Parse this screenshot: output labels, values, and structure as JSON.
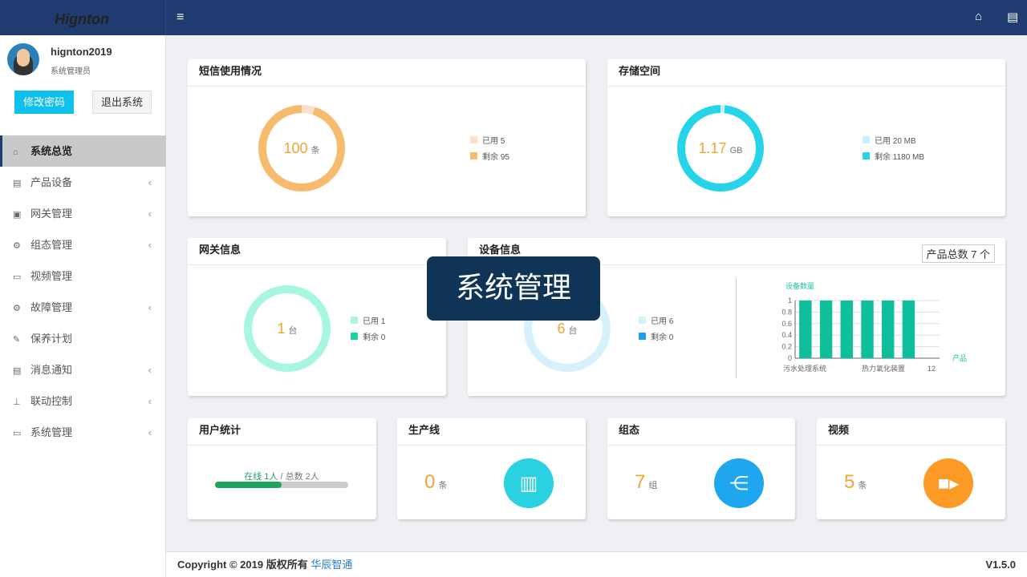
{
  "brand": {
    "logo": "Hignton"
  },
  "user": {
    "name": "hignton2019",
    "role": "系统管理员",
    "change_pwd": "修改密码",
    "logout": "退出系统"
  },
  "nav": [
    {
      "label": "系统总览",
      "icon": "home-icon",
      "active": true
    },
    {
      "label": "产品设备",
      "icon": "book-icon"
    },
    {
      "label": "网关管理",
      "icon": "gateway-icon"
    },
    {
      "label": "组态管理",
      "icon": "cogs-icon"
    },
    {
      "label": "视频管理",
      "icon": "monitor-icon"
    },
    {
      "label": "故障管理",
      "icon": "cogs-icon"
    },
    {
      "label": "保养计划",
      "icon": "wrench-icon"
    },
    {
      "label": "消息通知",
      "icon": "book-icon"
    },
    {
      "label": "联动控制",
      "icon": "sitemap-icon"
    },
    {
      "label": "系统管理",
      "icon": "monitor-icon"
    }
  ],
  "sms": {
    "title": "短信使用情况",
    "value": "100",
    "unit": "条",
    "used": "已用 5",
    "remain": "剩余 95",
    "used_n": 5,
    "remain_n": 95,
    "colors": [
      "#fbe0c4",
      "#f7bb6e"
    ]
  },
  "storage": {
    "title": "存储空间",
    "value": "1.17",
    "unit": "GB",
    "used": "已用 20 MB",
    "remain": "剩余 1180 MB",
    "used_n": 20,
    "remain_n": 1180,
    "colors": [
      "#c8f1f9",
      "#25d4e9"
    ]
  },
  "gateway": {
    "title": "网关信息",
    "value": "1",
    "unit": "台",
    "used": "已用 1",
    "remain": "剩余 0",
    "used_n": 1,
    "remain_n": 0,
    "colors": [
      "#a6f6e0",
      "#17d4a0"
    ]
  },
  "device": {
    "title": "设备信息",
    "total": "产品总数 7 个",
    "value": "6",
    "unit": "台",
    "used": "已用 6",
    "remain": "剩余 0",
    "used_n": 6,
    "remain_n": 0,
    "colors": [
      "#d6f0fc",
      "#1c9fe8"
    ]
  },
  "chart_data": {
    "type": "bar",
    "ylabel": "设备数量",
    "xlabel": "产品",
    "ylim": [
      0,
      1
    ],
    "yticks": [
      "0",
      "0.2",
      "0.4",
      "0.6",
      "0.8",
      "1"
    ],
    "xtick_labels": [
      "污水处理系统",
      "热力氧化装置",
      "12"
    ],
    "values": [
      1,
      1,
      1,
      1,
      1,
      1
    ],
    "color": "#0fbf9c"
  },
  "users": {
    "title": "用户统计",
    "online": "在线 1人",
    "sep": "/",
    "total": "总数 2人",
    "progress": 0.5
  },
  "line": {
    "title": "生产线",
    "value": "0",
    "unit": "条",
    "color": "#2ad1e0"
  },
  "config": {
    "title": "组态",
    "value": "7",
    "unit": "组",
    "color": "#1ea7ef"
  },
  "video": {
    "title": "视频",
    "value": "5",
    "unit": "条",
    "color": "#fb9a24"
  },
  "tooltip": "系统管理",
  "footer": {
    "copyright": "Copyright © 2019 版权所有 ",
    "company": "华辰智通",
    "version": "V1.5.0"
  }
}
